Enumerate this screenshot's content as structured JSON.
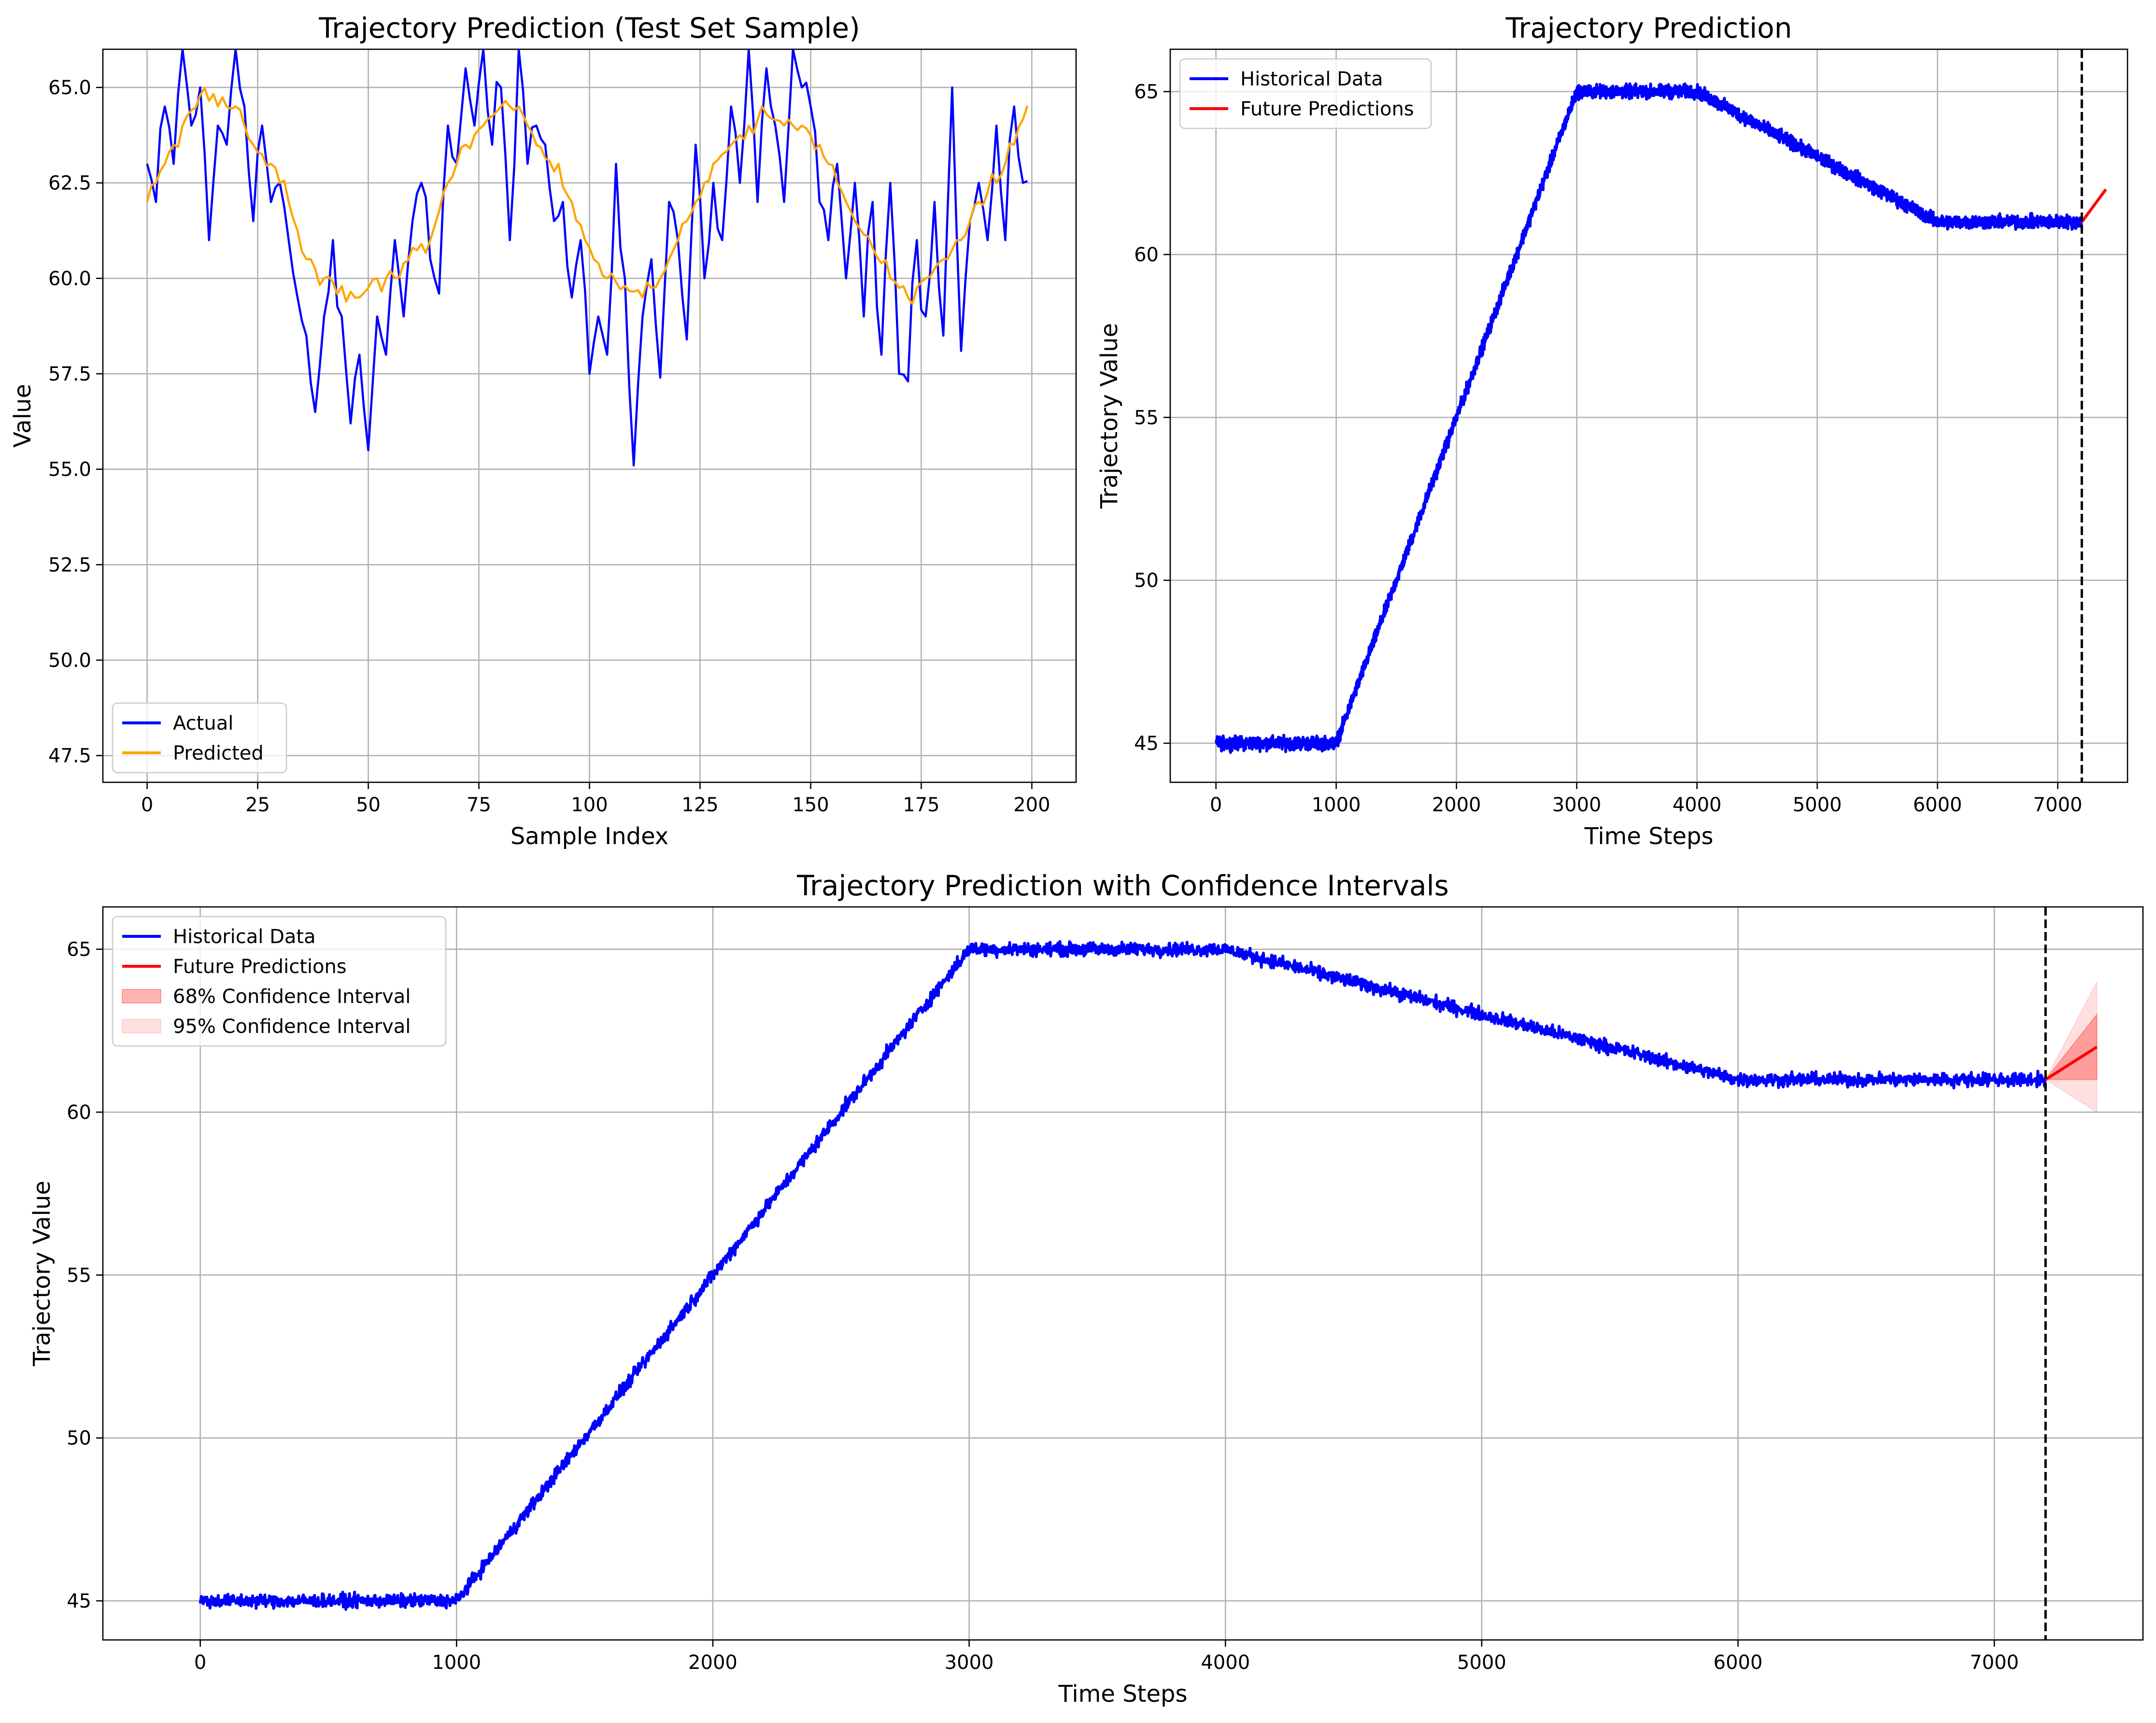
{
  "chart_data": [
    {
      "id": "test-sample",
      "type": "line",
      "title": "Trajectory Prediction (Test Set Sample)",
      "xlabel": "Sample Index",
      "ylabel": "Value",
      "xlim": [
        -10,
        210
      ],
      "ylim": [
        46.8,
        66.0
      ],
      "xticks": [
        0,
        25,
        50,
        75,
        100,
        125,
        150,
        175,
        200
      ],
      "yticks": [
        47.5,
        50.0,
        52.5,
        55.0,
        57.5,
        60.0,
        62.5,
        65.0
      ],
      "grid": true,
      "legend_position": "lower-left",
      "series": [
        {
          "name": "Actual",
          "color": "#0000ff",
          "y_control": [
            [
              0,
              63.0
            ],
            [
              2,
              62.0
            ],
            [
              4,
              64.5
            ],
            [
              6,
              63.0
            ],
            [
              8,
              66.0
            ],
            [
              10,
              64.0
            ],
            [
              12,
              65.0
            ],
            [
              14,
              61.0
            ],
            [
              16,
              64.0
            ],
            [
              18,
              63.5
            ],
            [
              20,
              66.0
            ],
            [
              22,
              64.5
            ],
            [
              24,
              61.5
            ],
            [
              26,
              64.0
            ],
            [
              28,
              62.0
            ],
            [
              30,
              62.5
            ],
            [
              32,
              61.0
            ],
            [
              34,
              59.5
            ],
            [
              36,
              58.5
            ],
            [
              38,
              56.5
            ],
            [
              40,
              59.0
            ],
            [
              42,
              61.0
            ],
            [
              44,
              59.0
            ],
            [
              46,
              56.2
            ],
            [
              48,
              58.0
            ],
            [
              50,
              55.5
            ],
            [
              52,
              59.0
            ],
            [
              54,
              58.0
            ],
            [
              56,
              61.0
            ],
            [
              58,
              59.0
            ],
            [
              60,
              61.5
            ],
            [
              62,
              62.5
            ],
            [
              64,
              60.5
            ],
            [
              66,
              59.6
            ],
            [
              68,
              64.0
            ],
            [
              70,
              63.0
            ],
            [
              72,
              65.5
            ],
            [
              74,
              64.0
            ],
            [
              76,
              66.0
            ],
            [
              78,
              63.5
            ],
            [
              80,
              65.0
            ],
            [
              82,
              61.0
            ],
            [
              84,
              66.0
            ],
            [
              86,
              63.0
            ],
            [
              88,
              64.0
            ],
            [
              90,
              63.5
            ],
            [
              92,
              61.5
            ],
            [
              94,
              62.0
            ],
            [
              96,
              59.5
            ],
            [
              98,
              61.0
            ],
            [
              100,
              57.5
            ],
            [
              102,
              59.0
            ],
            [
              104,
              58.0
            ],
            [
              106,
              63.0
            ],
            [
              108,
              60.0
            ],
            [
              110,
              55.1
            ],
            [
              112,
              59.0
            ],
            [
              114,
              60.5
            ],
            [
              116,
              57.4
            ],
            [
              118,
              62.0
            ],
            [
              120,
              61.0
            ],
            [
              122,
              58.4
            ],
            [
              124,
              63.5
            ],
            [
              126,
              60.0
            ],
            [
              128,
              62.5
            ],
            [
              130,
              61.0
            ],
            [
              132,
              64.5
            ],
            [
              134,
              62.5
            ],
            [
              136,
              66.0
            ],
            [
              138,
              62.0
            ],
            [
              140,
              65.5
            ],
            [
              142,
              64.0
            ],
            [
              144,
              62.0
            ],
            [
              146,
              66.0
            ],
            [
              148,
              65.0
            ],
            [
              150,
              64.5
            ],
            [
              152,
              62.0
            ],
            [
              154,
              61.0
            ],
            [
              156,
              63.0
            ],
            [
              158,
              60.0
            ],
            [
              160,
              62.5
            ],
            [
              162,
              59.0
            ],
            [
              164,
              62.0
            ],
            [
              166,
              58.0
            ],
            [
              168,
              62.5
            ],
            [
              170,
              57.5
            ],
            [
              172,
              57.3
            ],
            [
              174,
              61.0
            ],
            [
              176,
              59.0
            ],
            [
              178,
              62.0
            ],
            [
              180,
              58.5
            ],
            [
              182,
              65.0
            ],
            [
              184,
              58.1
            ],
            [
              186,
              61.5
            ],
            [
              188,
              62.5
            ],
            [
              190,
              61.0
            ],
            [
              192,
              64.0
            ],
            [
              194,
              61.0
            ],
            [
              196,
              64.5
            ],
            [
              198,
              62.5
            ],
            [
              199,
              62.3
            ]
          ],
          "noise_amplitude": 1.2
        },
        {
          "name": "Predicted",
          "color": "#ffa500",
          "y_control": [
            [
              0,
              62.0
            ],
            [
              4,
              63.0
            ],
            [
              8,
              64.0
            ],
            [
              12,
              64.8
            ],
            [
              16,
              64.5
            ],
            [
              20,
              64.5
            ],
            [
              24,
              63.5
            ],
            [
              28,
              63.0
            ],
            [
              32,
              62.0
            ],
            [
              36,
              60.5
            ],
            [
              40,
              60.0
            ],
            [
              44,
              59.8
            ],
            [
              48,
              59.5
            ],
            [
              52,
              60.0
            ],
            [
              56,
              60.0
            ],
            [
              60,
              60.8
            ],
            [
              64,
              61.0
            ],
            [
              68,
              62.5
            ],
            [
              72,
              63.5
            ],
            [
              76,
              64.0
            ],
            [
              80,
              64.5
            ],
            [
              84,
              64.5
            ],
            [
              88,
              63.5
            ],
            [
              92,
              62.8
            ],
            [
              96,
              62.0
            ],
            [
              100,
              60.8
            ],
            [
              104,
              60.0
            ],
            [
              108,
              59.8
            ],
            [
              112,
              59.5
            ],
            [
              116,
              60.0
            ],
            [
              120,
              61.0
            ],
            [
              124,
              62.0
            ],
            [
              128,
              63.0
            ],
            [
              132,
              63.5
            ],
            [
              136,
              64.0
            ],
            [
              140,
              64.3
            ],
            [
              144,
              64.0
            ],
            [
              148,
              64.0
            ],
            [
              152,
              63.5
            ],
            [
              156,
              62.5
            ],
            [
              160,
              61.5
            ],
            [
              164,
              60.8
            ],
            [
              168,
              60.0
            ],
            [
              172,
              59.5
            ],
            [
              176,
              60.0
            ],
            [
              180,
              60.5
            ],
            [
              184,
              61.0
            ],
            [
              188,
              62.0
            ],
            [
              192,
              62.5
            ],
            [
              196,
              63.5
            ],
            [
              199,
              64.5
            ]
          ],
          "noise_amplitude": 0.45
        }
      ]
    },
    {
      "id": "trajectory",
      "type": "line",
      "title": "Trajectory Prediction",
      "xlabel": "Time Steps",
      "ylabel": "Trajectory Value",
      "xlim": [
        -380,
        7580
      ],
      "ylim": [
        43.8,
        66.3
      ],
      "xticks": [
        0,
        1000,
        2000,
        3000,
        4000,
        5000,
        6000,
        7000
      ],
      "yticks": [
        45,
        50,
        55,
        60,
        65
      ],
      "grid": true,
      "legend_position": "upper-left",
      "forecast_start_line": 7200,
      "series": [
        {
          "name": "Historical Data",
          "color": "#0000ff",
          "x_range": [
            0,
            7199
          ],
          "shape": [
            [
              0,
              45.0
            ],
            [
              1000,
              45.0
            ],
            [
              3000,
              65.0
            ],
            [
              4000,
              65.0
            ],
            [
              6000,
              61.0
            ],
            [
              7199,
              61.0
            ]
          ],
          "noise_amplitude": 0.3
        },
        {
          "name": "Future Predictions",
          "color": "#ff0000",
          "x": [
            7200,
            7400
          ],
          "y": [
            61.0,
            62.0
          ]
        }
      ]
    },
    {
      "id": "confidence",
      "type": "line",
      "title": "Trajectory Prediction with Confidence Intervals",
      "xlabel": "Time Steps",
      "ylabel": "Trajectory Value",
      "xlim": [
        -380,
        7580
      ],
      "ylim": [
        43.8,
        66.3
      ],
      "xticks": [
        0,
        1000,
        2000,
        3000,
        4000,
        5000,
        6000,
        7000
      ],
      "yticks": [
        45,
        50,
        55,
        60,
        65
      ],
      "grid": true,
      "legend_position": "upper-left",
      "forecast_start_line": 7200,
      "series": [
        {
          "name": "Historical Data",
          "color": "#0000ff",
          "x_range": [
            0,
            7199
          ],
          "shape": [
            [
              0,
              45.0
            ],
            [
              1000,
              45.0
            ],
            [
              3000,
              65.0
            ],
            [
              4000,
              65.0
            ],
            [
              6000,
              61.0
            ],
            [
              7199,
              61.0
            ]
          ],
          "noise_amplitude": 0.3
        },
        {
          "name": "Future Predictions",
          "color": "#ff0000",
          "x": [
            7200,
            7400
          ],
          "y": [
            61.0,
            62.0
          ]
        }
      ],
      "bands": [
        {
          "name": "68% Confidence Interval",
          "color": "#ff0000",
          "opacity": 0.3,
          "x": [
            7200,
            7400
          ],
          "lower": [
            61.0,
            61.0
          ],
          "upper": [
            61.0,
            63.0
          ]
        },
        {
          "name": "95% Confidence Interval",
          "color": "#ff0000",
          "opacity": 0.12,
          "x": [
            7200,
            7400
          ],
          "lower": [
            61.0,
            60.0
          ],
          "upper": [
            61.0,
            64.0
          ]
        }
      ]
    }
  ]
}
